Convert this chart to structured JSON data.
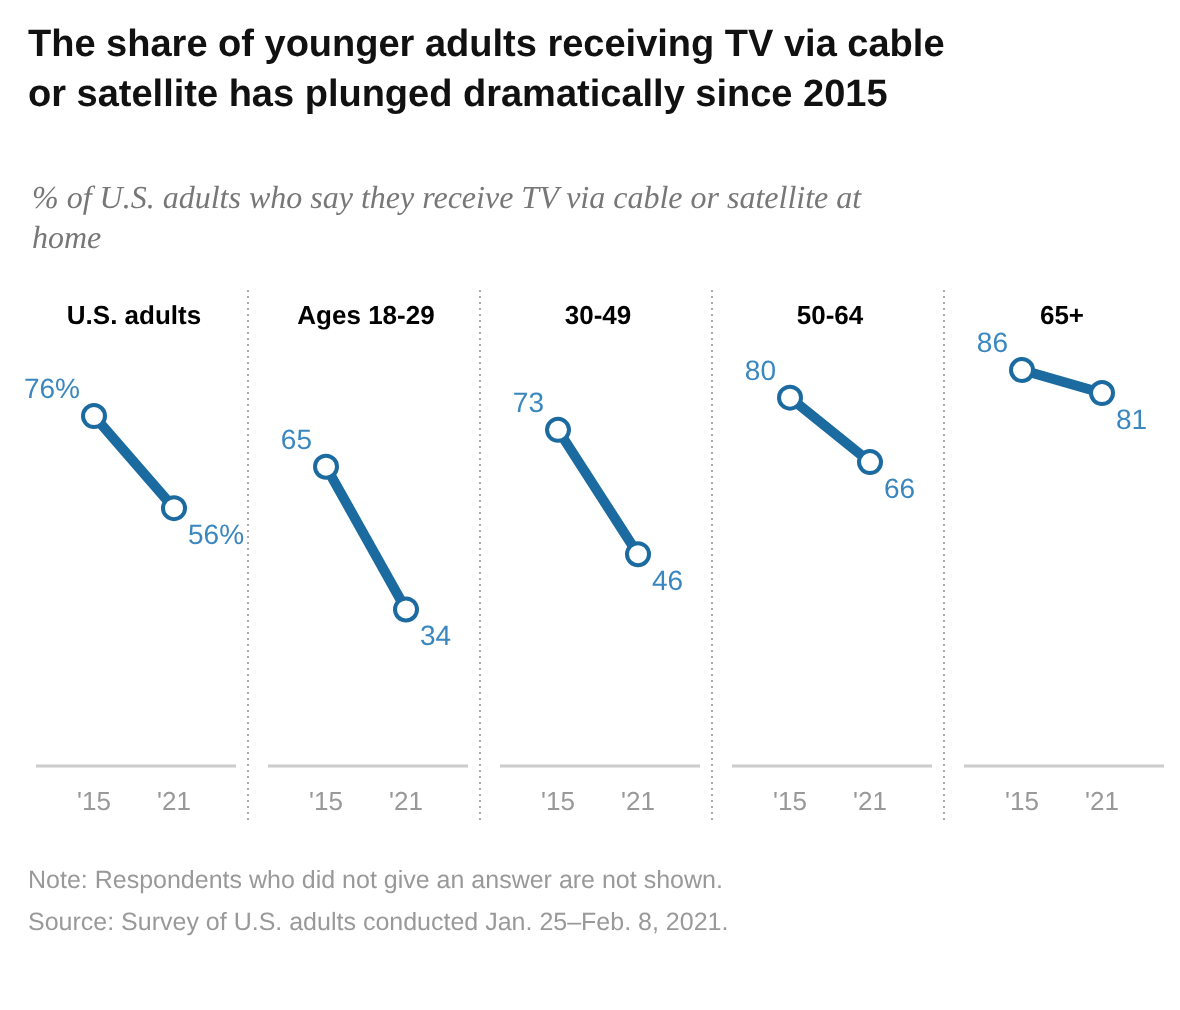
{
  "chart_data": [
    {
      "type": "line",
      "title": "U.S. adults",
      "categories": [
        "'15",
        "'21"
      ],
      "values": [
        76,
        56
      ],
      "value_labels": [
        "76%",
        "56%"
      ],
      "color": "#1c6ba0",
      "marker": "circle",
      "tick_labels": "x"
    },
    {
      "type": "line",
      "title": "Ages 18-29",
      "categories": [
        "'15",
        "'21"
      ],
      "values": [
        65,
        34
      ],
      "data_labels": true,
      "color": "#1c6ba0",
      "marker": "circle",
      "tick_labels": "x"
    },
    {
      "type": "line",
      "title": "30-49",
      "categories": [
        "'15",
        "'21"
      ],
      "values": [
        73,
        46
      ],
      "data_labels": true,
      "color": "#1c6ba0",
      "marker": "circle",
      "tick_labels": "x"
    },
    {
      "type": "line",
      "title": "50-64",
      "categories": [
        "'15",
        "'21"
      ],
      "values": [
        80,
        66
      ],
      "data_labels": true,
      "color": "#1c6ba0",
      "marker": "circle",
      "tick_labels": "x"
    },
    {
      "type": "line",
      "title": "65+",
      "categories": [
        "'15",
        "'21"
      ],
      "values": [
        86,
        81
      ],
      "data_labels": true,
      "color": "#1c6ba0",
      "marker": "circle",
      "tick_labels": "x"
    },
    {
      "type": "other",
      "title": "The share of younger adults receiving TV via cable or satellite has plunged dramatically since 2015",
      "subtitle": "% of U.S. adults who say they receive TV via cable or satellite at home",
      "annotations": [
        "Note: Respondents who did not give an answer are not shown.",
        "Source: Survey of U.S. adults conducted Jan. 25–Feb. 8, 2021."
      ]
    }
  ]
}
